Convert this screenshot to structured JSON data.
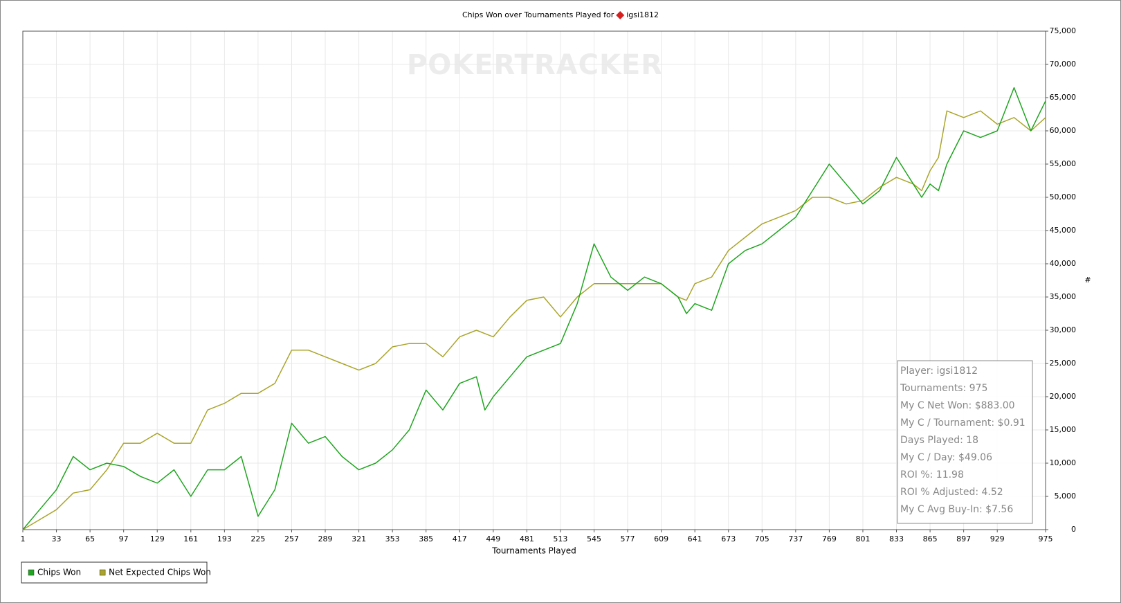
{
  "chart_data": {
    "type": "line",
    "title": "Chips Won over Tournaments Played for",
    "player": "igsi1812",
    "watermark": "POKERTRACKER",
    "xlabel": "Tournaments Played",
    "ylabel": "#",
    "x": [
      1,
      17,
      33,
      49,
      65,
      81,
      97,
      113,
      129,
      145,
      161,
      177,
      193,
      209,
      225,
      241,
      257,
      273,
      289,
      305,
      321,
      337,
      353,
      369,
      385,
      401,
      417,
      433,
      441,
      449,
      465,
      481,
      497,
      513,
      529,
      545,
      561,
      577,
      593,
      609,
      625,
      633,
      641,
      657,
      673,
      689,
      705,
      721,
      737,
      753,
      769,
      785,
      801,
      817,
      833,
      849,
      857,
      865,
      873,
      881,
      897,
      913,
      929,
      945,
      961,
      975
    ],
    "series": [
      {
        "name": "Chips Won",
        "color": "#1fa51f",
        "values": [
          0,
          3000,
          6000,
          11000,
          9000,
          10000,
          9500,
          8000,
          7000,
          9000,
          5000,
          9000,
          9000,
          11000,
          2000,
          6000,
          16000,
          13000,
          14000,
          11000,
          9000,
          10000,
          12000,
          15000,
          21000,
          18000,
          22000,
          23000,
          18000,
          20000,
          23000,
          26000,
          27000,
          28000,
          34000,
          43000,
          38000,
          36000,
          38000,
          37000,
          35000,
          32500,
          34000,
          33000,
          40000,
          42000,
          43000,
          45000,
          47000,
          51000,
          55000,
          52000,
          49000,
          51000,
          56000,
          52000,
          50000,
          52000,
          51000,
          55000,
          60000,
          59000,
          60000,
          66500,
          60000,
          64500
        ]
      },
      {
        "name": "Net Expected Chips Won",
        "color": "#aaa52a",
        "values": [
          0,
          1500,
          3000,
          5500,
          6000,
          9000,
          13000,
          13000,
          14500,
          13000,
          13000,
          18000,
          19000,
          20500,
          20500,
          22000,
          27000,
          27000,
          26000,
          25000,
          24000,
          25000,
          27500,
          28000,
          28000,
          26000,
          29000,
          30000,
          29500,
          29000,
          32000,
          34500,
          35000,
          32000,
          35000,
          37000,
          37000,
          37000,
          37000,
          37000,
          35000,
          34500,
          37000,
          38000,
          42000,
          44000,
          46000,
          47000,
          48000,
          50000,
          50000,
          49000,
          49500,
          51500,
          53000,
          52000,
          51000,
          54000,
          56000,
          63000,
          62000,
          63000,
          61000,
          62000,
          60000,
          62000
        ]
      }
    ],
    "xlim": [
      1,
      975
    ],
    "xticks": [
      1,
      33,
      65,
      97,
      129,
      161,
      193,
      225,
      257,
      289,
      321,
      353,
      385,
      417,
      449,
      481,
      513,
      545,
      577,
      609,
      641,
      673,
      705,
      737,
      769,
      801,
      833,
      865,
      897,
      929,
      975
    ],
    "ylim": [
      0,
      75000
    ],
    "yticks": [
      0,
      {
        "value": 5000,
        "label": "5,000"
      },
      {
        "value": 10000,
        "label": "10,000"
      },
      {
        "value": 15000,
        "label": "15,000"
      },
      {
        "value": 20000,
        "label": "20,000"
      },
      {
        "value": 25000,
        "label": "25,000"
      },
      {
        "value": 30000,
        "label": "30,000"
      },
      {
        "value": 35000,
        "label": "35,000"
      },
      {
        "value": 40000,
        "label": "40,000"
      },
      {
        "value": 45000,
        "label": "45,000"
      },
      {
        "value": 50000,
        "label": "50,000"
      },
      {
        "value": 55000,
        "label": "55,000"
      },
      {
        "value": 60000,
        "label": "60,000"
      },
      {
        "value": 65000,
        "label": "65,000"
      },
      {
        "value": 70000,
        "label": "70,000"
      },
      {
        "value": 75000,
        "label": "75,000"
      }
    ],
    "grid": true,
    "info": [
      "Player: igsi1812",
      "Tournaments: 975",
      "My C Net Won: $883.00",
      "My C / Tournament: $0.91",
      "Days Played: 18",
      "My C / Day: $49.06",
      "ROI %: 11.98",
      "ROI % Adjusted: 4.52",
      "My C Avg Buy-In: $7.56"
    ]
  }
}
